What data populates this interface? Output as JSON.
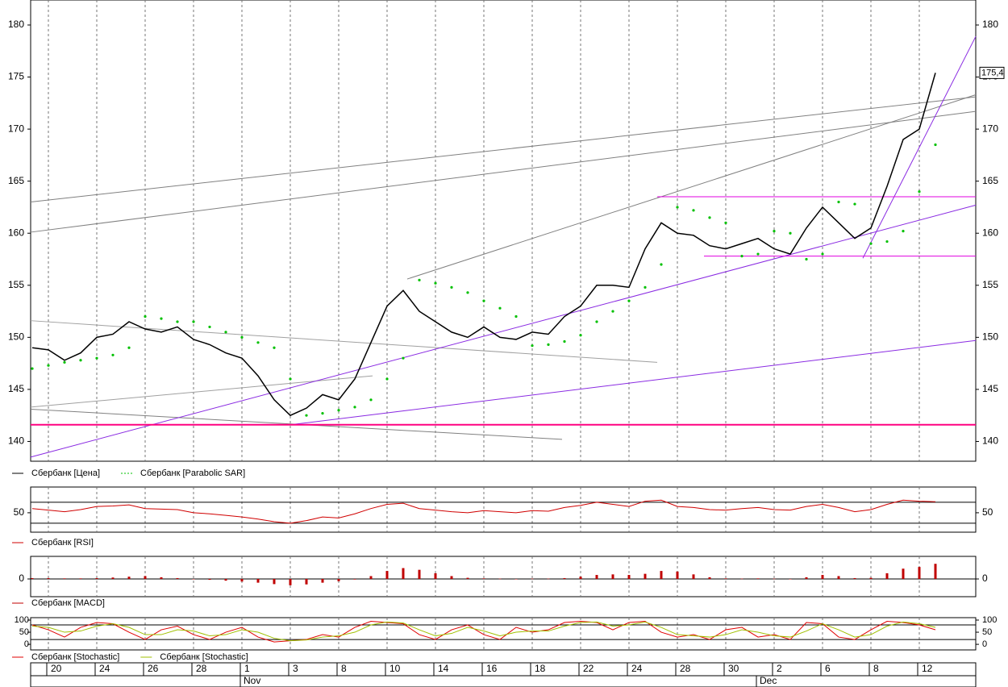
{
  "chart_data": [
    {
      "type": "line",
      "categories": [
        null,
        "20",
        null,
        null,
        "24",
        null,
        null,
        "26",
        null,
        null,
        "28",
        null,
        null,
        "1",
        null,
        null,
        "3",
        null,
        null,
        "8",
        null,
        null,
        "10",
        null,
        null,
        "14",
        null,
        null,
        "16",
        null,
        null,
        "18",
        null,
        null,
        "22",
        null,
        null,
        "24",
        null,
        null,
        "28",
        null,
        null,
        "30",
        null,
        null,
        "2",
        null,
        null,
        "6",
        null,
        null,
        "8",
        null,
        null,
        "12",
        null
      ],
      "months": [
        {
          "index": 13,
          "label": "Nov"
        },
        {
          "index": 45,
          "label": "Dec"
        }
      ],
      "ylim": [
        138.1,
        182.4
      ],
      "yticks": [
        140,
        145,
        150,
        155,
        160,
        165,
        170,
        175,
        180
      ],
      "grid": "x",
      "series": [
        {
          "name": "Сбербанк [Цена]",
          "color": "#000000",
          "style": "line",
          "values": [
            149.0,
            148.8,
            147.8,
            148.5,
            150.0,
            150.3,
            151.5,
            150.8,
            150.5,
            151.0,
            149.8,
            149.3,
            148.5,
            148.0,
            146.3,
            144.0,
            142.5,
            143.2,
            144.5,
            144.0,
            146.0,
            149.5,
            153.0,
            154.5,
            152.5,
            151.5,
            150.5,
            150.0,
            151.0,
            150.0,
            149.8,
            150.5,
            150.3,
            152.0,
            153.0,
            155.0,
            155.0,
            154.8,
            158.5,
            161.0,
            160.0,
            159.8,
            158.8,
            158.5,
            159.0,
            159.5,
            158.5,
            158.0,
            160.5,
            162.5,
            161.0,
            159.5,
            160.5,
            164.5,
            169.0,
            170.0,
            175.4
          ]
        },
        {
          "name": "Сбербанк [Parabolic SAR]",
          "color": "#00c000",
          "style": "dots",
          "values": [
            147.0,
            147.3,
            147.6,
            147.8,
            148.0,
            148.3,
            149.0,
            152.0,
            151.8,
            151.5,
            151.5,
            151.0,
            150.5,
            150.0,
            149.5,
            149.0,
            146.0,
            142.5,
            142.7,
            143.0,
            143.3,
            144.0,
            146.0,
            148.0,
            155.5,
            155.2,
            154.8,
            154.3,
            153.5,
            152.8,
            152.0,
            149.2,
            149.3,
            149.6,
            150.2,
            151.5,
            152.5,
            153.5,
            154.8,
            157.0,
            162.5,
            162.2,
            161.5,
            161.0,
            157.8,
            158.0,
            160.2,
            160.0,
            157.5,
            158.0,
            163.0,
            162.8,
            159.0,
            159.2,
            160.2,
            164.0,
            168.5
          ]
        }
      ],
      "last_value": {
        "value": 175.4,
        "label": "175,4"
      },
      "trendlines": [
        {
          "x": [
            -0.1,
            58.5
          ],
          "y": [
            163.0,
            173.1
          ],
          "color": "#808080"
        },
        {
          "x": [
            -0.1,
            58.5
          ],
          "y": [
            160.1,
            171.7
          ],
          "color": "#808080"
        },
        {
          "x": [
            23.25,
            58.5
          ],
          "y": [
            155.6,
            173.3
          ],
          "color": "#808080"
        },
        {
          "x": [
            -0.1,
            38.75
          ],
          "y": [
            151.6,
            147.6
          ],
          "color": "#a0a0a0"
        },
        {
          "x": [
            -0.1,
            32.85
          ],
          "y": [
            143.1,
            140.2
          ],
          "color": "#808080"
        },
        {
          "x": [
            -0.1,
            21.1
          ],
          "y": [
            143.3,
            146.3
          ],
          "color": "#a0a0a0"
        },
        {
          "x": [
            -0.1,
            58.5
          ],
          "y": [
            138.5,
            162.7
          ],
          "color": "#8a2be2"
        },
        {
          "x": [
            16,
            58.5
          ],
          "y": [
            141.6,
            149.7
          ],
          "color": "#8a2be2"
        },
        {
          "x": [
            51.5,
            58.5
          ],
          "y": [
            157.6,
            178.9
          ],
          "color": "#8a2be2"
        },
        {
          "x": [
            -0.1,
            58.5
          ],
          "y": [
            141.6,
            141.6
          ],
          "color": "#ff0080"
        },
        {
          "x": [
            38.75,
            58.5
          ],
          "y": [
            163.5,
            163.5
          ],
          "color": "#e000e0"
        },
        {
          "x": [
            41.65,
            58.5
          ],
          "y": [
            157.8,
            157.8
          ],
          "color": "#e000e0"
        }
      ]
    },
    {
      "type": "line",
      "ylim": [
        13,
        99
      ],
      "yticks": [
        50
      ],
      "levels": [
        30,
        70
      ],
      "grid": "x",
      "series": [
        {
          "name": "Сбербанк [RSI]",
          "color": "#d00000",
          "style": "line",
          "values": [
            58,
            55,
            52,
            56,
            62,
            63,
            65,
            58,
            57,
            56,
            50,
            48,
            45,
            42,
            38,
            33,
            30,
            35,
            42,
            40,
            48,
            58,
            66,
            68,
            58,
            55,
            52,
            50,
            54,
            52,
            50,
            54,
            53,
            60,
            64,
            70,
            66,
            62,
            72,
            74,
            62,
            60,
            56,
            55,
            58,
            60,
            56,
            55,
            62,
            66,
            60,
            52,
            56,
            66,
            74,
            72,
            71
          ]
        }
      ]
    },
    {
      "type": "bar",
      "ylim": [
        -6.2,
        7.9
      ],
      "yticks": [
        0
      ],
      "levels": [
        0
      ],
      "grid": "x",
      "series": [
        {
          "name": "Сбербанк [MACD]",
          "color": "#c00000",
          "values": [
            0.3,
            0.3,
            0.2,
            0.2,
            0.3,
            0.5,
            0.8,
            1.0,
            0.6,
            0.3,
            0,
            -0.3,
            -0.6,
            -0.9,
            -1.3,
            -1.8,
            -2.2,
            -1.9,
            -1.3,
            -0.8,
            -0.2,
            1.0,
            2.8,
            3.8,
            3.2,
            2.0,
            1.0,
            0.4,
            0.2,
            0.1,
            0.0,
            0.1,
            0.1,
            0.3,
            0.8,
            1.4,
            1.6,
            1.4,
            1.8,
            2.8,
            2.6,
            1.6,
            0.6,
            0.2,
            0.1,
            0.2,
            0.1,
            0.0,
            0.6,
            1.4,
            1.0,
            0.3,
            0.4,
            2.0,
            3.6,
            4.2,
            5.3
          ]
        }
      ]
    },
    {
      "type": "line",
      "ylim": [
        -23,
        110
      ],
      "yticks": [
        0,
        50,
        100
      ],
      "levels": [
        20,
        80
      ],
      "grid": "x",
      "series": [
        {
          "name": "Сбербанк [Stochastic]",
          "color": "#e00000",
          "style": "line",
          "values": [
            80,
            60,
            30,
            70,
            90,
            85,
            50,
            20,
            60,
            75,
            40,
            20,
            50,
            70,
            30,
            10,
            15,
            20,
            40,
            30,
            70,
            95,
            90,
            85,
            40,
            20,
            60,
            80,
            40,
            20,
            70,
            50,
            60,
            90,
            95,
            90,
            60,
            90,
            95,
            50,
            30,
            40,
            20,
            60,
            70,
            30,
            40,
            20,
            90,
            85,
            30,
            20,
            60,
            95,
            90,
            80,
            60
          ]
        },
        {
          "name": "Сбербанк [Stochastic]",
          "color": "#a0c000",
          "style": "line",
          "values": [
            75,
            70,
            50,
            55,
            75,
            85,
            70,
            40,
            40,
            60,
            55,
            35,
            40,
            60,
            50,
            25,
            15,
            18,
            30,
            35,
            50,
            80,
            92,
            88,
            60,
            35,
            45,
            70,
            55,
            35,
            50,
            55,
            55,
            75,
            90,
            92,
            75,
            80,
            92,
            70,
            40,
            35,
            30,
            40,
            60,
            50,
            35,
            30,
            55,
            85,
            60,
            30,
            40,
            75,
            92,
            85,
            70
          ]
        }
      ]
    }
  ]
}
